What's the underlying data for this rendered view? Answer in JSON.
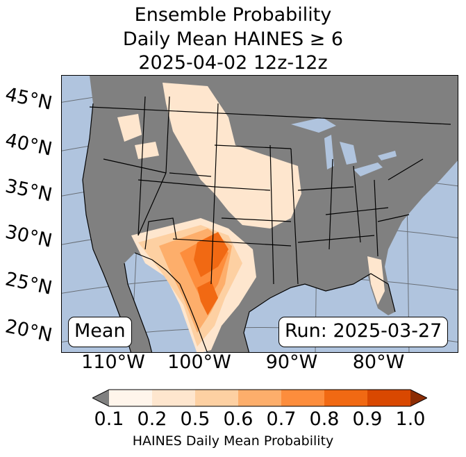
{
  "title_lines": [
    "Ensemble Probability",
    "Daily Mean HAINES ≥ 6",
    "2025-04-02 12z-12z"
  ],
  "latitude_labels": [
    "45°N",
    "40°N",
    "35°N",
    "30°N",
    "25°N",
    "20°N"
  ],
  "longitude_labels": [
    "110°W",
    "100°W",
    "90°W",
    "80°W"
  ],
  "badges": {
    "mean": "Mean",
    "run": "Run: 2025-03-27"
  },
  "colorbar": {
    "ticks": [
      "0.1",
      "0.2",
      "0.5",
      "0.6",
      "0.7",
      "0.8",
      "0.9",
      "1.0"
    ],
    "label": "HAINES Daily Mean Probability",
    "colors": [
      "#fff5eb",
      "#fee6ce",
      "#fdd0a2",
      "#fdae6b",
      "#fd8d3c",
      "#f16913",
      "#d94801"
    ],
    "under_color": "#808080",
    "over_color": "#8c2d04"
  },
  "colors": {
    "ocean": "#b0c4de",
    "land": "#808080",
    "border": "#000000"
  }
}
